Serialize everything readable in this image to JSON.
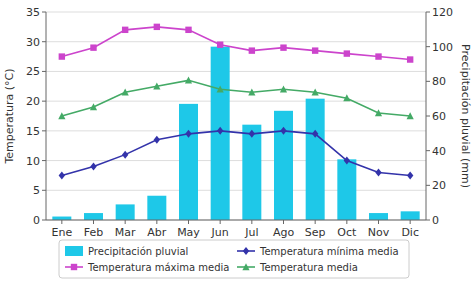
{
  "chart_data": {
    "type": "bar",
    "categories": [
      "Ene",
      "Feb",
      "Mar",
      "Abr",
      "May",
      "Jun",
      "Jul",
      "Ago",
      "Sep",
      "Oct",
      "Nov",
      "Dic"
    ],
    "series": [
      {
        "name": "Precipitación pluvial",
        "type": "bar",
        "axis": "y2",
        "color": "#1EC8E8",
        "values": [
          2,
          4,
          9,
          14,
          67,
          100,
          55,
          63,
          70,
          35,
          4,
          5
        ]
      },
      {
        "name": "Temperatura máxima media",
        "type": "line",
        "color": "#CC44CC",
        "marker": "square",
        "values": [
          27.5,
          29.0,
          32.0,
          32.5,
          32.0,
          29.5,
          28.5,
          29.0,
          28.5,
          28.0,
          27.5,
          27.0
        ]
      },
      {
        "name": "Temperatura mínima media",
        "type": "line",
        "color": "#3333AA",
        "marker": "diamond",
        "values": [
          7.5,
          9.0,
          11.0,
          13.5,
          14.5,
          15.0,
          14.5,
          15.0,
          14.5,
          10.0,
          8.0,
          7.5
        ]
      },
      {
        "name": "Temperatura media",
        "type": "line",
        "color": "#44AA66",
        "marker": "triangle",
        "values": [
          17.5,
          19.0,
          21.5,
          22.5,
          23.5,
          22.0,
          21.5,
          22.0,
          21.5,
          20.5,
          18.0,
          17.5
        ]
      }
    ],
    "ylabel": "Temperatura (°C)",
    "y2label": "Precipitación pluvial (mm)",
    "ylim": [
      0,
      35
    ],
    "yticks": [
      0,
      5,
      10,
      15,
      20,
      25,
      30,
      35
    ],
    "y2lim": [
      0,
      120
    ],
    "y2ticks": [
      0,
      20,
      40,
      60,
      80,
      100,
      120
    ],
    "grid": true,
    "legend": "bottom"
  }
}
